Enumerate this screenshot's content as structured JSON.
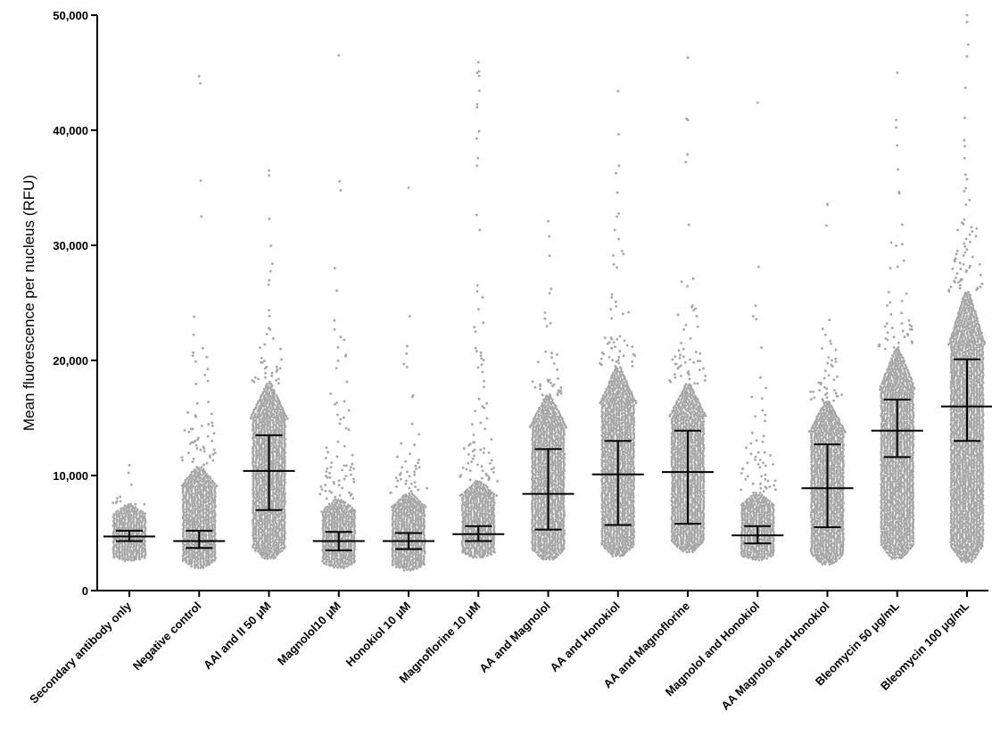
{
  "chart_data": {
    "type": "scatter",
    "subtype": "beeswarm with mean and error bars",
    "title": "",
    "xlabel": "",
    "ylabel": "Mean fluorescence per nucleus (RFU)",
    "ylim": [
      0,
      50000
    ],
    "yticks": [
      "0",
      "10,000",
      "20,000",
      "30,000",
      "40,000",
      "50,000"
    ],
    "ytick_values": [
      0,
      10000,
      20000,
      30000,
      40000,
      50000
    ],
    "grid": false,
    "legend": "none",
    "point_color": "#a6a6a6",
    "bar_color": "#000000",
    "categories": [
      "Secondary antibody only",
      "Negative control",
      "AAI and II 50 μM",
      "Magnolol10 μM",
      "Honokiol 10 μM",
      "Magnoflorine 10 μM",
      "AA and Magnolol",
      "AA and Honokiol",
      "AA and Magnoflorine",
      "Magnolol and Honokiol",
      "AA Magnolol and Honokiol",
      "Bleomycin 50 μg/mL",
      "Bleomycin 100 μg/mL"
    ],
    "series": [
      {
        "center": 4700,
        "lower": 4300,
        "upper": 5200,
        "min": 2600,
        "max": 10900,
        "dense_max": 7500
      },
      {
        "center": 4300,
        "lower": 3700,
        "upper": 5200,
        "min": 2000,
        "max": 44700,
        "dense_max": 10800
      },
      {
        "center": 10400,
        "lower": 7000,
        "upper": 13500,
        "min": 2800,
        "max": 36500,
        "dense_max": 18000
      },
      {
        "center": 4300,
        "lower": 3500,
        "upper": 5100,
        "min": 2000,
        "max": 46500,
        "dense_max": 8000
      },
      {
        "center": 4300,
        "lower": 3600,
        "upper": 5000,
        "min": 1800,
        "max": 35000,
        "dense_max": 8500
      },
      {
        "center": 4900,
        "lower": 4300,
        "upper": 5600,
        "min": 2900,
        "max": 45900,
        "dense_max": 9500
      },
      {
        "center": 8400,
        "lower": 5300,
        "upper": 12300,
        "min": 2700,
        "max": 32100,
        "dense_max": 17000
      },
      {
        "center": 10100,
        "lower": 5700,
        "upper": 13000,
        "min": 3000,
        "max": 43400,
        "dense_max": 19500
      },
      {
        "center": 10300,
        "lower": 5800,
        "upper": 13900,
        "min": 3400,
        "max": 46300,
        "dense_max": 18000
      },
      {
        "center": 4800,
        "lower": 4100,
        "upper": 5600,
        "min": 2700,
        "max": 42400,
        "dense_max": 8500
      },
      {
        "center": 8900,
        "lower": 5500,
        "upper": 12700,
        "min": 2300,
        "max": 33600,
        "dense_max": 16500
      },
      {
        "center": 13900,
        "lower": 11600,
        "upper": 16600,
        "min": 2800,
        "max": 45000,
        "dense_max": 21000
      },
      {
        "center": 16000,
        "lower": 13000,
        "upper": 20100,
        "min": 2500,
        "max": 50000,
        "dense_max": 26000
      }
    ]
  }
}
